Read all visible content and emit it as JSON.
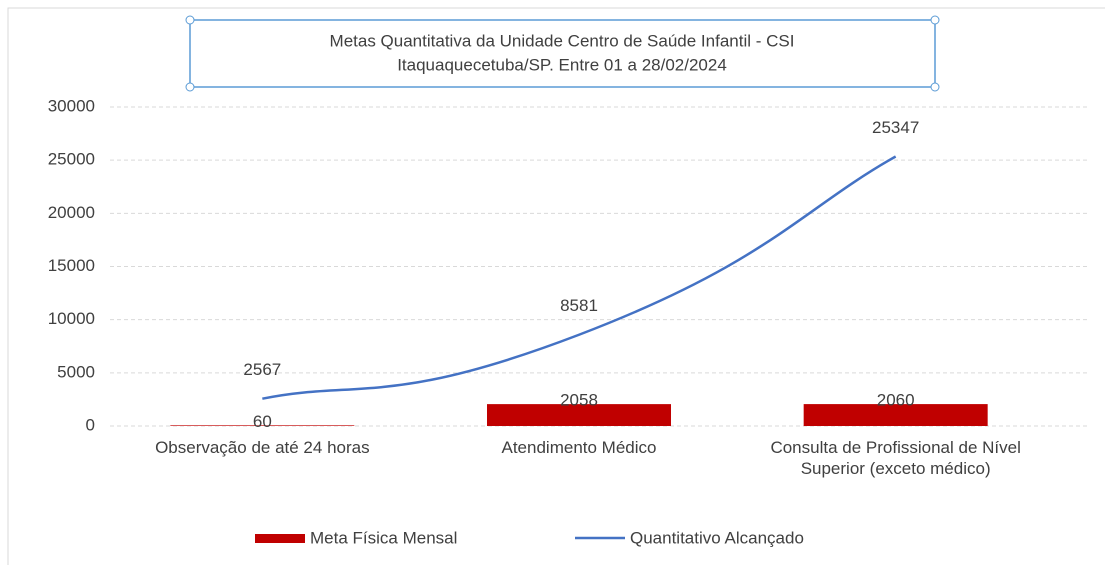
{
  "chart_data": {
    "type": "bar",
    "title": [
      "Metas Quantitativa da Unidade Centro de Saúde Infantil   - CSI",
      "Itaquaquecetuba/SP. Entre 01 a 28/02/2024"
    ],
    "categories": [
      "Observação de até 24 horas",
      "Atendimento Médico",
      "Consulta de Profissional de Nível Superior (exceto médico)"
    ],
    "series": [
      {
        "name": "Meta Física Mensal",
        "type": "bar",
        "color": "#c00000",
        "values": [
          60,
          2058,
          2060
        ]
      },
      {
        "name": "Quantitativo Alcançado",
        "type": "line",
        "color": "#4472c4",
        "values": [
          2567,
          8581,
          25347
        ]
      }
    ],
    "ylim": [
      0,
      30000
    ],
    "yticks": [
      0,
      5000,
      10000,
      15000,
      20000,
      25000,
      30000
    ],
    "grid": true,
    "legend": "bottom"
  }
}
